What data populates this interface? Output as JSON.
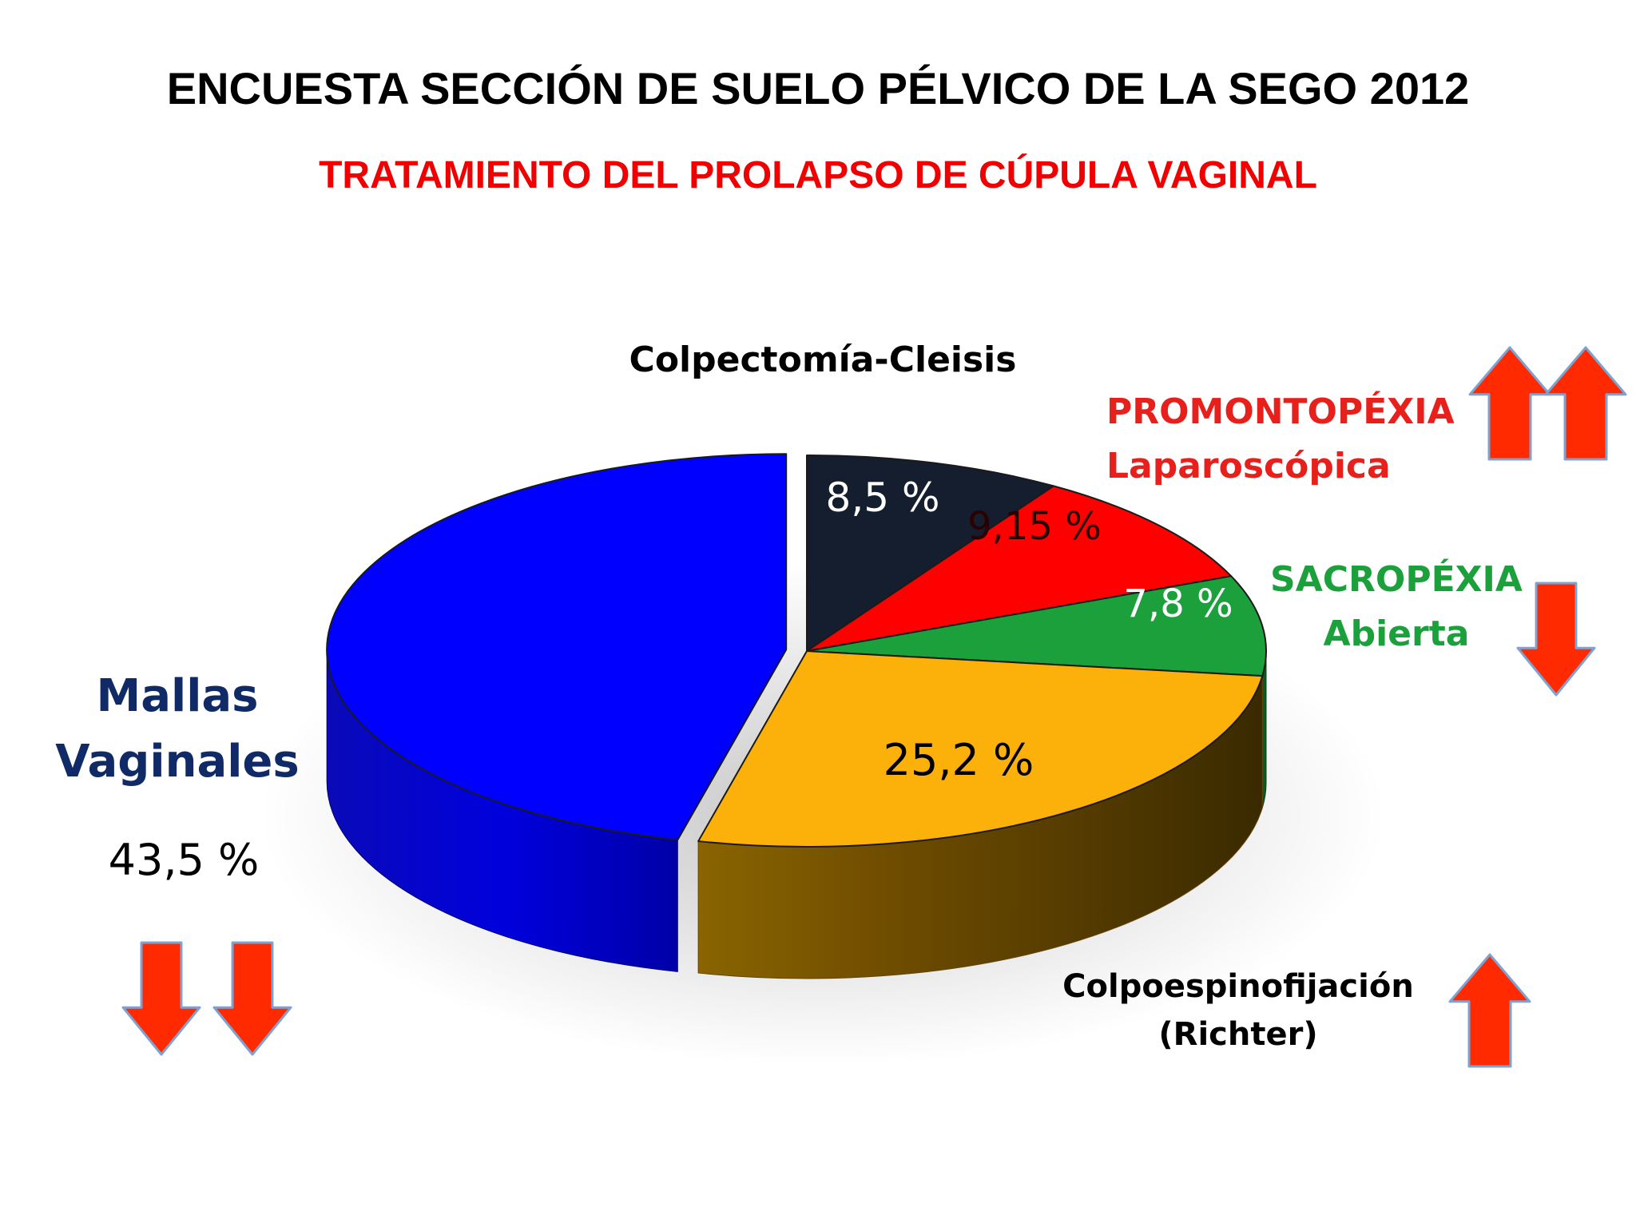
{
  "title": "ENCUESTA SECCIÓN DE SUELO PÉLVICO DE LA SEGO 2012",
  "subtitle": "TRATAMIENTO  DEL PROLAPSO DE CÚPULA VAGINAL",
  "chart_data": {
    "type": "pie",
    "title": "TRATAMIENTO  DEL PROLAPSO DE CÚPULA VAGINAL",
    "slices": [
      {
        "label_lines": [
          "Colpectomía-Cleisis"
        ],
        "value": 8.5,
        "value_label": "8,5 %",
        "color": "#141e2e",
        "label_color": "#000000",
        "value_color": "#ffffff",
        "trend": "none"
      },
      {
        "label_lines": [
          "PROMONTOPÉXIA",
          "Laparoscópica"
        ],
        "value": 9.15,
        "value_label": "9,15 %",
        "color": "#ff0000",
        "label_color": "#e8201c",
        "value_color": "#2a0000",
        "trend": "up-up"
      },
      {
        "label_lines": [
          "SACROPÉXIA",
          "Abierta"
        ],
        "value": 7.8,
        "value_label": "7,8 %",
        "color": "#1ba03c",
        "label_color": "#1ba03c",
        "value_color": "#ffffff",
        "trend": "down"
      },
      {
        "label_lines": [
          "Colpoespinofijación",
          "(Richter)"
        ],
        "value": 25.2,
        "value_label": "25,2 %",
        "color": "#fbb00a",
        "label_color": "#000000",
        "value_color": "#000000",
        "trend": "up"
      },
      {
        "label_lines": [
          "Mallas",
          "Vaginales"
        ],
        "value": 43.5,
        "value_label": "43,5 %",
        "color": "#0000ff",
        "label_color": "#0f2a66",
        "value_color": "#000000",
        "trend": "down-down"
      }
    ],
    "exploded": [
      "Mallas",
      "Vaginales"
    ],
    "legend": "none",
    "style": "3d"
  },
  "colors": {
    "arrow": "#ff2a00",
    "arrow_edge": "#7fa2d0",
    "subtitle": "#f00000"
  },
  "icons": {
    "up": "up-arrow-icon",
    "down": "down-arrow-icon"
  }
}
